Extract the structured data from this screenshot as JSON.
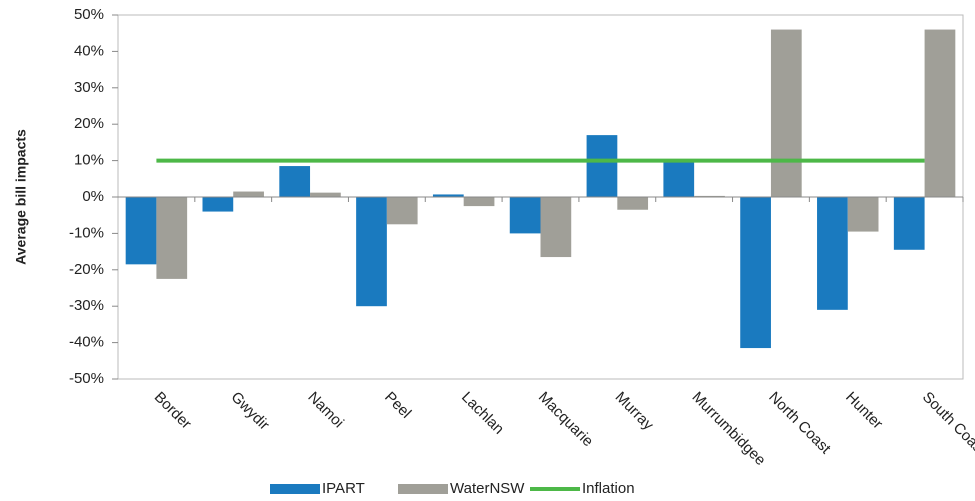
{
  "chart_data": {
    "type": "bar",
    "y_axis_label": "Average bill impacts",
    "categories": [
      "Border",
      "Gwydir",
      "Namoi",
      "Peel",
      "Lachlan",
      "Macquarie",
      "Murray",
      "Murrumbidgee",
      "North Coast",
      "Hunter",
      "South Coast"
    ],
    "series": [
      {
        "name": "IPART",
        "color": "#1a7abf",
        "kind": "bar",
        "values": [
          -18.5,
          -4,
          8.5,
          -30,
          0.7,
          -10,
          17,
          9.5,
          -41.5,
          -31,
          -14.5
        ]
      },
      {
        "name": "WaterNSW",
        "color": "#a09f98",
        "kind": "bar",
        "values": [
          -22.5,
          1.5,
          1.2,
          -7.5,
          -2.5,
          -16.5,
          -3.5,
          0.3,
          46,
          -9.5,
          46
        ]
      },
      {
        "name": "Inflation",
        "color": "#4db848",
        "kind": "line",
        "values": [
          10,
          10,
          10,
          10,
          10,
          10,
          10,
          10,
          10,
          10,
          10
        ]
      }
    ],
    "ylim": [
      -50,
      50
    ],
    "yticks": [
      {
        "value": -50,
        "label": "-50%"
      },
      {
        "value": -40,
        "label": "-40%"
      },
      {
        "value": -30,
        "label": "-30%"
      },
      {
        "value": -20,
        "label": "-20%"
      },
      {
        "value": -10,
        "label": "-10%"
      },
      {
        "value": 0,
        "label": "0%"
      },
      {
        "value": 10,
        "label": "10%"
      },
      {
        "value": 20,
        "label": "20%"
      },
      {
        "value": 30,
        "label": "30%"
      },
      {
        "value": 40,
        "label": "40%"
      },
      {
        "value": 50,
        "label": "50%"
      }
    ],
    "grid": false,
    "legend": "bottom"
  }
}
